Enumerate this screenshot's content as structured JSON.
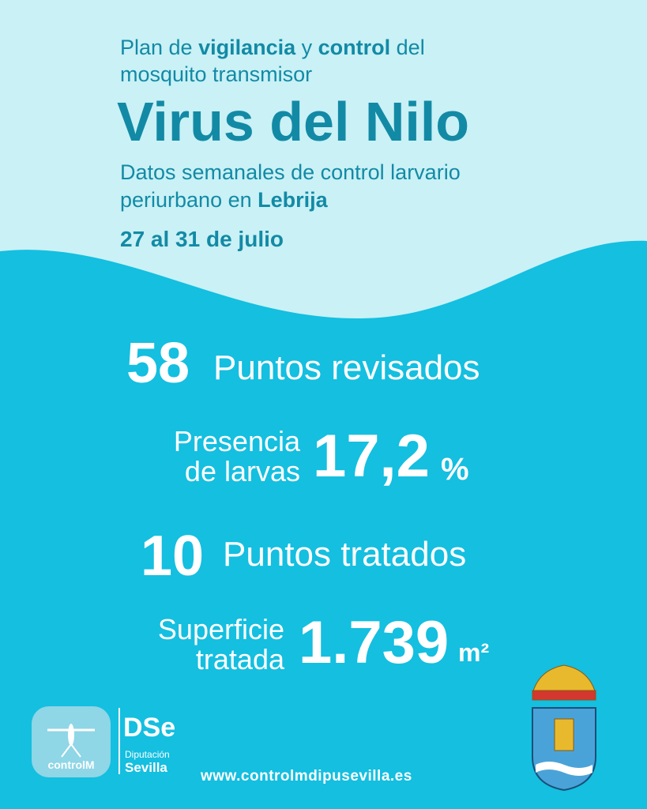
{
  "header": {
    "line1": [
      "Plan de ",
      "vigilancia",
      " y ",
      "control",
      " del"
    ],
    "line2": "mosquito transmisor",
    "title": "Virus del Nilo",
    "subtitle1": "Datos semanales de control larvario",
    "subtitle2": [
      "periurbano en ",
      "Lebrija"
    ],
    "dates": "27 al 31 de julio"
  },
  "stats": [
    {
      "number": "58",
      "label": "Puntos revisados"
    },
    {
      "label_lines": [
        "Presencia",
        "de larvas"
      ],
      "number": "17,2",
      "unit": "%"
    },
    {
      "number": "10",
      "label": "Puntos tratados"
    },
    {
      "label_lines": [
        "Superficie",
        "tratada"
      ],
      "number": "1.739",
      "unit": "m²"
    }
  ],
  "footer": {
    "logo1": "controlM",
    "logo2_mark": "DSe",
    "logo2_line1": "Diputación",
    "logo2_line2": "Sevilla",
    "url": "www.controlmdipusevilla.es"
  }
}
